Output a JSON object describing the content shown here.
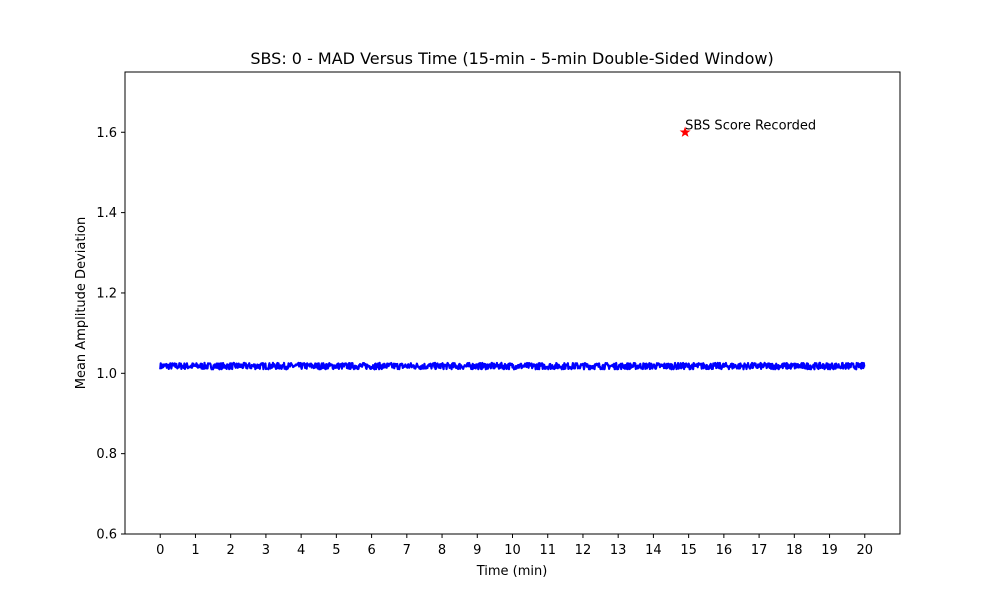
{
  "chart_data": {
    "type": "line",
    "title": "SBS: 0 - MAD Versus Time (15-min - 5-min Double-Sided Window)",
    "xlabel": "Time (min)",
    "ylabel": "Mean Amplitude Deviation",
    "xlim": [
      -1,
      21
    ],
    "ylim": [
      0.6,
      1.75
    ],
    "xticks": [
      0,
      1,
      2,
      3,
      4,
      5,
      6,
      7,
      8,
      9,
      10,
      11,
      12,
      13,
      14,
      15,
      16,
      17,
      18,
      19,
      20
    ],
    "yticks": [
      0.6,
      0.8,
      1.0,
      1.2,
      1.4,
      1.6
    ],
    "grid": false,
    "series": [
      {
        "color": "#0000ff",
        "x_range": [
          0,
          20
        ],
        "center": 1.018,
        "band": [
          1.01,
          1.026
        ]
      }
    ],
    "marker": {
      "x": 14.9,
      "y": 1.6,
      "color": "#ff0000",
      "symbol": "star",
      "label": "SBS Score Recorded"
    }
  }
}
